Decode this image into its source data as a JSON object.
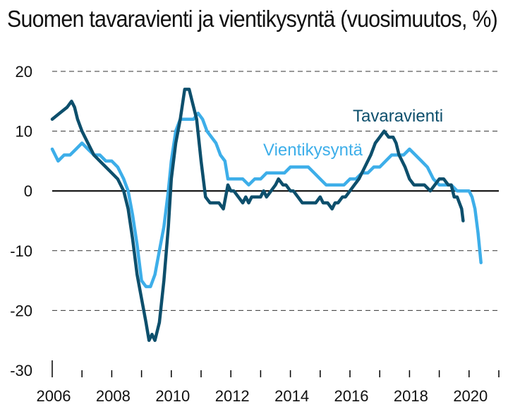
{
  "chart_data": {
    "type": "line",
    "title": "Suomen tavaravienti ja vientikysyntä (vuosimuutos, %)",
    "xlabel": "",
    "ylabel": "",
    "xlim": [
      2006,
      2021
    ],
    "ylim": [
      -30,
      20
    ],
    "x_ticks": [
      "2006",
      "2008",
      "2010",
      "2012",
      "2014",
      "2016",
      "2018",
      "2020"
    ],
    "y_ticks": [
      "20",
      "10",
      "0",
      "-10",
      "-20",
      "-30"
    ],
    "grid": "dashed horizontal",
    "colors": {
      "Tavaravienti": "#0d4f6c",
      "Vientikysyntä": "#3daee9"
    },
    "series": [
      {
        "name": "Tavaravienti",
        "x": [
          2006.0,
          2006.25,
          2006.5,
          2006.65,
          2006.75,
          2006.85,
          2007.0,
          2007.2,
          2007.4,
          2007.6,
          2007.8,
          2008.0,
          2008.2,
          2008.4,
          2008.55,
          2008.7,
          2008.85,
          2009.0,
          2009.15,
          2009.25,
          2009.35,
          2009.45,
          2009.6,
          2009.75,
          2009.9,
          2010.0,
          2010.15,
          2010.3,
          2010.45,
          2010.6,
          2010.7,
          2010.85,
          2011.0,
          2011.15,
          2011.3,
          2011.45,
          2011.6,
          2011.75,
          2011.9,
          2012.0,
          2012.1,
          2012.25,
          2012.4,
          2012.5,
          2012.6,
          2012.7,
          2012.85,
          2013.0,
          2013.1,
          2013.2,
          2013.35,
          2013.5,
          2013.6,
          2013.75,
          2013.85,
          2014.0,
          2014.1,
          2014.25,
          2014.4,
          2014.55,
          2014.7,
          2014.85,
          2015.0,
          2015.1,
          2015.25,
          2015.4,
          2015.5,
          2015.6,
          2015.75,
          2015.85,
          2016.0,
          2016.15,
          2016.3,
          2016.5,
          2016.7,
          2016.85,
          2017.0,
          2017.15,
          2017.3,
          2017.45,
          2017.55,
          2017.65,
          2017.75,
          2017.85,
          2018.0,
          2018.15,
          2018.3,
          2018.5,
          2018.7,
          2018.85,
          2019.0,
          2019.15,
          2019.3,
          2019.4,
          2019.5,
          2019.6,
          2019.75,
          2019.8
        ],
        "values": [
          12,
          13,
          14,
          15,
          14,
          12,
          10,
          8,
          6,
          5,
          4,
          3,
          2,
          0,
          -3,
          -8,
          -14,
          -18,
          -22,
          -25,
          -24,
          -25,
          -22,
          -15,
          -6,
          2,
          8,
          12,
          17,
          17,
          15,
          12,
          5,
          -1,
          -2,
          -2,
          -2,
          -3,
          1,
          0,
          0,
          -1,
          -2,
          -1,
          -2,
          -1,
          -1,
          -1,
          0,
          -1,
          0,
          1,
          2,
          1,
          1,
          0,
          0,
          -1,
          -2,
          -2,
          -2,
          -2,
          -1,
          -2,
          -2,
          -3,
          -2,
          -2,
          -1,
          -1,
          0,
          1,
          2,
          4,
          6,
          8,
          9,
          10,
          9,
          9,
          8,
          6,
          5,
          4,
          2,
          1,
          1,
          1,
          0,
          1,
          2,
          2,
          1,
          1,
          -1,
          -1,
          -3,
          -5
        ]
      },
      {
        "name": "Vientikysyntä",
        "x": [
          2006.0,
          2006.2,
          2006.4,
          2006.6,
          2006.8,
          2007.0,
          2007.2,
          2007.4,
          2007.6,
          2007.8,
          2008.0,
          2008.2,
          2008.4,
          2008.55,
          2008.7,
          2008.85,
          2009.0,
          2009.15,
          2009.3,
          2009.45,
          2009.6,
          2009.75,
          2009.9,
          2010.0,
          2010.15,
          2010.3,
          2010.45,
          2010.6,
          2010.75,
          2010.9,
          2011.05,
          2011.2,
          2011.35,
          2011.5,
          2011.65,
          2011.8,
          2011.9,
          2012.0,
          2012.2,
          2012.4,
          2012.6,
          2012.8,
          2013.0,
          2013.2,
          2013.4,
          2013.6,
          2013.8,
          2014.0,
          2014.2,
          2014.4,
          2014.6,
          2014.8,
          2015.0,
          2015.2,
          2015.4,
          2015.6,
          2015.8,
          2016.0,
          2016.2,
          2016.4,
          2016.6,
          2016.8,
          2017.0,
          2017.2,
          2017.4,
          2017.6,
          2017.8,
          2018.0,
          2018.2,
          2018.4,
          2018.6,
          2018.8,
          2019.0,
          2019.2,
          2019.4,
          2019.6,
          2019.8,
          2020.0,
          2020.1,
          2020.2,
          2020.3,
          2020.4
        ],
        "values": [
          7,
          5,
          6,
          6,
          7,
          8,
          7,
          6,
          6,
          5,
          5,
          4,
          2,
          0,
          -4,
          -9,
          -15,
          -16,
          -16,
          -14,
          -10,
          -6,
          0,
          5,
          10,
          12,
          12,
          12,
          12,
          13,
          12,
          10,
          9,
          8,
          6,
          5,
          2,
          2,
          2,
          2,
          1,
          2,
          2,
          3,
          3,
          3,
          3,
          4,
          4,
          4,
          4,
          3,
          2,
          1,
          1,
          1,
          1,
          2,
          2,
          3,
          3,
          4,
          4,
          5,
          6,
          6,
          6,
          7,
          6,
          5,
          4,
          2,
          1,
          1,
          1,
          0,
          0,
          0,
          -1,
          -3,
          -7,
          -12
        ]
      }
    ]
  }
}
